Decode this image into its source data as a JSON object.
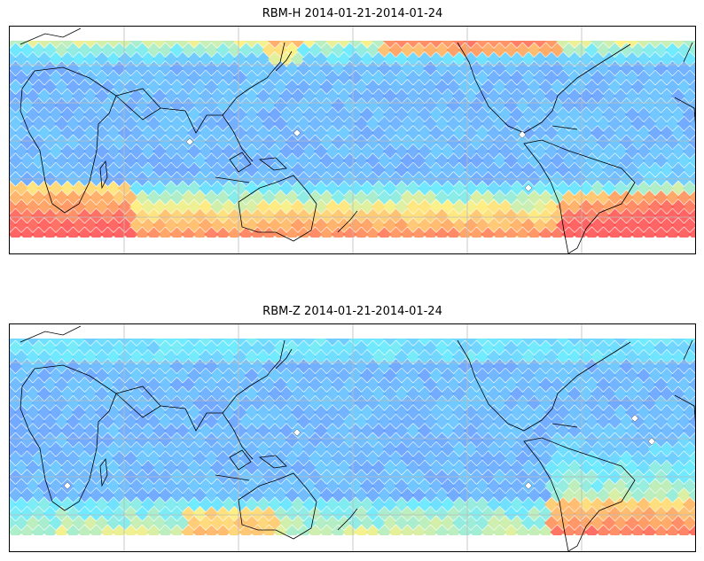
{
  "panels": [
    {
      "title": "RBM-H 2014-01-21-2014-01-24",
      "field": "H",
      "colormap": [
        "#6a5cff",
        "#5aa0ff",
        "#58e8ff",
        "#ffee70",
        "#ff9a50",
        "#ff4a4a"
      ]
    },
    {
      "title": "RBM-Z 2014-01-21-2014-01-24",
      "field": "Z",
      "colormap": [
        "#6a5cff",
        "#5aa0ff",
        "#58e8ff",
        "#ffee70",
        "#ff9a50",
        "#ff4a4a"
      ]
    }
  ]
}
